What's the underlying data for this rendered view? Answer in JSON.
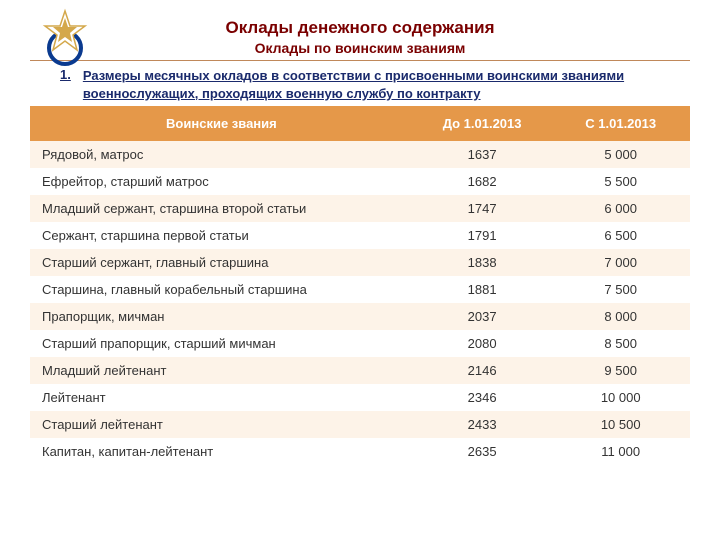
{
  "emblem_color_star": "#d4a84b",
  "emblem_color_wreath": "#0a3a8f",
  "titles": {
    "main": "Оклады денежного содержания",
    "sub": "Оклады по воинским званиям"
  },
  "subtitle": {
    "num": "1.",
    "text": "Размеры месячных окладов в соответствии с присвоенными воинскими званиями военнослужащих, проходящих военную службу по контракту"
  },
  "table": {
    "header_bg": "#e59849",
    "row_alt_bg": "#fdf3e8",
    "columns": {
      "rank": "Воинские звания",
      "before": "До 1.01.2013",
      "after": "С 1.01.2013"
    },
    "rows": [
      {
        "rank": "Рядовой, матрос",
        "before": "1637",
        "after": "5 000"
      },
      {
        "rank": "Ефрейтор, старший матрос",
        "before": "1682",
        "after": "5 500"
      },
      {
        "rank": "Младший сержант, старшина второй статьи",
        "before": "1747",
        "after": "6 000"
      },
      {
        "rank": "Сержант, старшина первой статьи",
        "before": "1791",
        "after": "6 500"
      },
      {
        "rank": "Старший сержант, главный старшина",
        "before": "1838",
        "after": "7 000"
      },
      {
        "rank": "Старшина, главный корабельный старшина",
        "before": "1881",
        "after": "7 500"
      },
      {
        "rank": "Прапорщик, мичман",
        "before": "2037",
        "after": "8 000"
      },
      {
        "rank": "Старший прапорщик, старший мичман",
        "before": "2080",
        "after": "8 500"
      },
      {
        "rank": "Младший лейтенант",
        "before": "2146",
        "after": "9 500"
      },
      {
        "rank": "Лейтенант",
        "before": "2346",
        "after": "10 000"
      },
      {
        "rank": "Старший лейтенант",
        "before": "2433",
        "after": "10 500"
      },
      {
        "rank": "Капитан, капитан-лейтенант",
        "before": "2635",
        "after": "11 000"
      }
    ]
  }
}
